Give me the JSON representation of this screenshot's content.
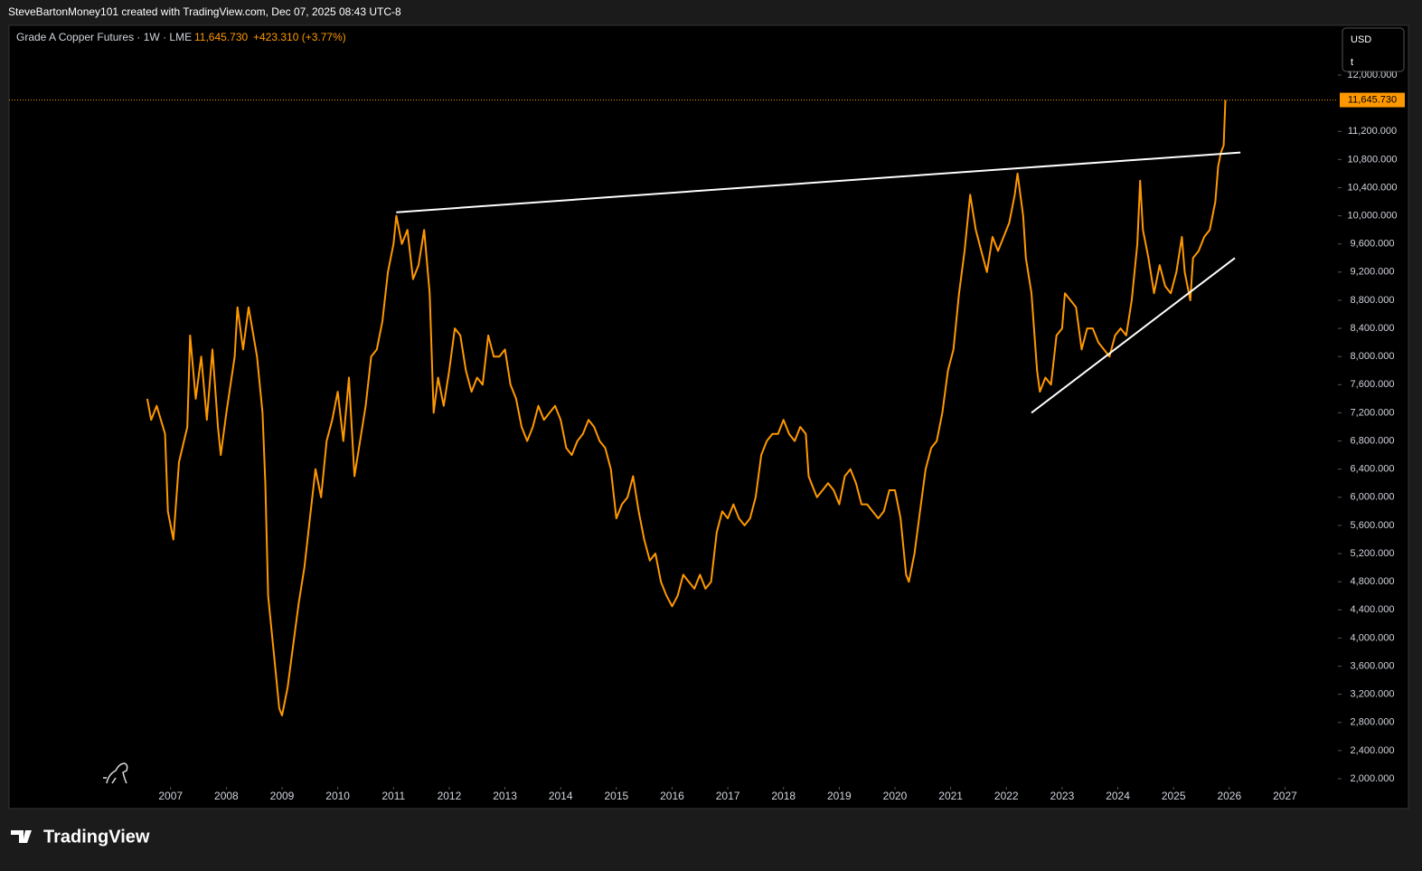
{
  "header": {
    "text": "SteveBartonMoney101 created with TradingView.com, Dec 07, 2025 08:43 UTC-8"
  },
  "footer": {
    "brand": "TradingView"
  },
  "chart_data": {
    "type": "line",
    "title": "Grade A Copper Futures · 1W · LME",
    "last_price": 11645.73,
    "last_price_label": "11,645.730",
    "change_label": "+423.310 (+3.77%)",
    "currency": "USD",
    "unit": "t",
    "xlim": [
      2004.1,
      2027.95
    ],
    "xticks": [
      2007,
      2008,
      2009,
      2010,
      2011,
      2012,
      2013,
      2014,
      2015,
      2016,
      2017,
      2018,
      2019,
      2020,
      2021,
      2022,
      2023,
      2024,
      2025,
      2026,
      2027
    ],
    "ylim": [
      1910,
      12707
    ],
    "yticks": [
      {
        "value": 2000,
        "label": "2,000.000"
      },
      {
        "value": 2400,
        "label": "2,400.000"
      },
      {
        "value": 2800,
        "label": "2,800.000"
      },
      {
        "value": 3200,
        "label": "3,200.000"
      },
      {
        "value": 3600,
        "label": "3,600.000"
      },
      {
        "value": 4000,
        "label": "4,000.000"
      },
      {
        "value": 4400,
        "label": "4,400.000"
      },
      {
        "value": 4800,
        "label": "4,800.000"
      },
      {
        "value": 5200,
        "label": "5,200.000"
      },
      {
        "value": 5600,
        "label": "5,600.000"
      },
      {
        "value": 6000,
        "label": "6,000.000"
      },
      {
        "value": 6400,
        "label": "6,400.000"
      },
      {
        "value": 6800,
        "label": "6,800.000"
      },
      {
        "value": 7200,
        "label": "7,200.000"
      },
      {
        "value": 7600,
        "label": "7,600.000"
      },
      {
        "value": 8000,
        "label": "8,000.000"
      },
      {
        "value": 8400,
        "label": "8,400.000"
      },
      {
        "value": 8800,
        "label": "8,800.000"
      },
      {
        "value": 9200,
        "label": "9,200.000"
      },
      {
        "value": 9600,
        "label": "9,600.000"
      },
      {
        "value": 10000,
        "label": "10,000.000"
      },
      {
        "value": 10400,
        "label": "10,400.000"
      },
      {
        "value": 10800,
        "label": "10,800.000"
      },
      {
        "value": 11200,
        "label": "11,200.000"
      },
      {
        "value": 12000,
        "label": "12,000.000"
      }
    ],
    "series": [
      {
        "name": "Grade A Copper Futures",
        "color": "#ff9800",
        "x": [
          2006.58,
          2006.65,
          2006.75,
          2006.9,
          2006.95,
          2007.05,
          2007.15,
          2007.3,
          2007.35,
          2007.45,
          2007.55,
          2007.65,
          2007.75,
          2007.85,
          2007.9,
          2008.0,
          2008.15,
          2008.2,
          2008.3,
          2008.4,
          2008.55,
          2008.65,
          2008.7,
          2008.75,
          2008.85,
          2008.95,
          2009.0,
          2009.1,
          2009.2,
          2009.3,
          2009.4,
          2009.5,
          2009.6,
          2009.7,
          2009.8,
          2009.9,
          2010.0,
          2010.1,
          2010.2,
          2010.3,
          2010.4,
          2010.5,
          2010.6,
          2010.7,
          2010.8,
          2010.9,
          2011.0,
          2011.05,
          2011.15,
          2011.25,
          2011.35,
          2011.45,
          2011.55,
          2011.65,
          2011.72,
          2011.8,
          2011.9,
          2012.0,
          2012.1,
          2012.2,
          2012.3,
          2012.4,
          2012.5,
          2012.6,
          2012.7,
          2012.8,
          2012.9,
          2013.0,
          2013.1,
          2013.2,
          2013.3,
          2013.4,
          2013.5,
          2013.6,
          2013.7,
          2013.8,
          2013.9,
          2014.0,
          2014.1,
          2014.2,
          2014.3,
          2014.4,
          2014.5,
          2014.6,
          2014.7,
          2014.8,
          2014.9,
          2015.0,
          2015.1,
          2015.2,
          2015.3,
          2015.4,
          2015.5,
          2015.6,
          2015.7,
          2015.8,
          2015.9,
          2016.0,
          2016.1,
          2016.2,
          2016.3,
          2016.4,
          2016.5,
          2016.6,
          2016.7,
          2016.8,
          2016.9,
          2017.0,
          2017.1,
          2017.2,
          2017.3,
          2017.4,
          2017.5,
          2017.6,
          2017.7,
          2017.8,
          2017.9,
          2018.0,
          2018.1,
          2018.2,
          2018.3,
          2018.4,
          2018.45,
          2018.5,
          2018.6,
          2018.7,
          2018.8,
          2018.9,
          2019.0,
          2019.1,
          2019.2,
          2019.3,
          2019.4,
          2019.5,
          2019.6,
          2019.7,
          2019.8,
          2019.9,
          2020.0,
          2020.1,
          2020.2,
          2020.25,
          2020.35,
          2020.45,
          2020.55,
          2020.65,
          2020.75,
          2020.85,
          2020.95,
          2021.05,
          2021.15,
          2021.25,
          2021.35,
          2021.45,
          2021.55,
          2021.65,
          2021.75,
          2021.85,
          2021.95,
          2022.05,
          2022.15,
          2022.2,
          2022.3,
          2022.35,
          2022.45,
          2022.55,
          2022.6,
          2022.7,
          2022.8,
          2022.9,
          2023.0,
          2023.05,
          2023.15,
          2023.25,
          2023.35,
          2023.45,
          2023.55,
          2023.65,
          2023.75,
          2023.85,
          2023.95,
          2024.05,
          2024.15,
          2024.25,
          2024.35,
          2024.4,
          2024.45,
          2024.55,
          2024.65,
          2024.75,
          2024.85,
          2024.95,
          2025.05,
          2025.15,
          2025.2,
          2025.3,
          2025.35,
          2025.45,
          2025.55,
          2025.65,
          2025.75,
          2025.8,
          2025.85,
          2025.9,
          2025.93
        ],
        "values": [
          7400,
          7100,
          7300,
          6900,
          5800,
          5400,
          6500,
          7000,
          8300,
          7400,
          8000,
          7100,
          8100,
          7000,
          6600,
          7200,
          8000,
          8700,
          8100,
          8700,
          8000,
          7200,
          6200,
          4600,
          3800,
          3000,
          2900,
          3300,
          3900,
          4500,
          5000,
          5700,
          6400,
          6000,
          6800,
          7100,
          7500,
          6800,
          7700,
          6300,
          6800,
          7300,
          8000,
          8100,
          8500,
          9200,
          9600,
          10000,
          9600,
          9800,
          9100,
          9300,
          9800,
          8900,
          7200,
          7700,
          7300,
          7800,
          8400,
          8300,
          7800,
          7500,
          7700,
          7600,
          8300,
          8000,
          8000,
          8100,
          7600,
          7400,
          7000,
          6800,
          7000,
          7300,
          7100,
          7200,
          7300,
          7100,
          6700,
          6600,
          6800,
          6900,
          7100,
          7000,
          6800,
          6700,
          6400,
          5700,
          5900,
          6000,
          6300,
          5800,
          5400,
          5100,
          5200,
          4800,
          4600,
          4450,
          4600,
          4900,
          4800,
          4700,
          4900,
          4700,
          4800,
          5500,
          5800,
          5700,
          5900,
          5700,
          5600,
          5700,
          6000,
          6600,
          6800,
          6900,
          6900,
          7100,
          6900,
          6800,
          7000,
          6900,
          6300,
          6200,
          6000,
          6100,
          6200,
          6100,
          5900,
          6300,
          6400,
          6200,
          5900,
          5900,
          5800,
          5700,
          5800,
          6100,
          6100,
          5700,
          4900,
          4800,
          5200,
          5800,
          6400,
          6700,
          6800,
          7200,
          7800,
          8100,
          8900,
          9500,
          10300,
          9800,
          9500,
          9200,
          9700,
          9500,
          9700,
          9900,
          10300,
          10600,
          10000,
          9400,
          8900,
          7800,
          7500,
          7700,
          7600,
          8300,
          8400,
          8900,
          8800,
          8700,
          8100,
          8400,
          8400,
          8200,
          8100,
          8000,
          8300,
          8400,
          8300,
          8800,
          9600,
          10500,
          9800,
          9400,
          8900,
          9300,
          9000,
          8900,
          9200,
          9700,
          9200,
          8800,
          9400,
          9500,
          9700,
          9800,
          10200,
          10700,
          10900,
          11000,
          11645.73
        ]
      }
    ],
    "trendlines": [
      {
        "color": "#ffffff",
        "x": [
          2011.05,
          2026.2
        ],
        "y": [
          10050,
          10900
        ]
      },
      {
        "color": "#ffffff",
        "x": [
          2022.45,
          2026.1
        ],
        "y": [
          7200,
          9400
        ]
      }
    ]
  }
}
